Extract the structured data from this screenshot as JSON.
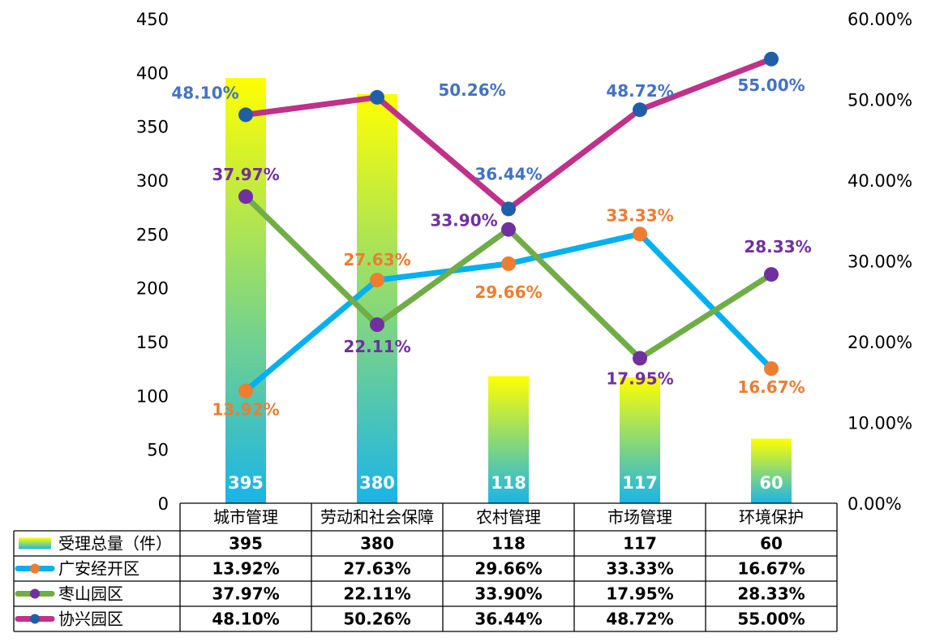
{
  "chart_data": {
    "type": "bar",
    "categories": [
      "城市管理",
      "劳动和社会保障",
      "农村管理",
      "市场管理",
      "环境保护"
    ],
    "bar_series": {
      "name": "受理总量（件）",
      "values": [
        395,
        380,
        118,
        117,
        60
      ],
      "color_top": "#ffff00",
      "color_bottom": "#1ab4e8"
    },
    "line_series": [
      {
        "name": "广安经开区",
        "values": [
          13.92,
          27.63,
          29.66,
          33.33,
          16.67
        ],
        "labels": [
          "13.92%",
          "27.63%",
          "29.66%",
          "33.33%",
          "16.67%"
        ],
        "line_color": "#00b0f0",
        "marker_color": "#ed7d31",
        "label_color": "#ed7d31"
      },
      {
        "name": "枣山园区",
        "values": [
          37.97,
          22.11,
          33.9,
          17.95,
          28.33
        ],
        "labels": [
          "37.97%",
          "22.11%",
          "33.90%",
          "17.95%",
          "28.33%"
        ],
        "line_color": "#70ad47",
        "marker_color": "#7030a0",
        "label_color": "#7030a0"
      },
      {
        "name": "协兴园区",
        "values": [
          48.1,
          50.26,
          36.44,
          48.72,
          55.0
        ],
        "labels": [
          "48.10%",
          "50.26%",
          "36.44%",
          "48.72%",
          "55.00%"
        ],
        "line_color": "#c0318a",
        "marker_color": "#1f5fa8",
        "label_color": "#4472c4"
      }
    ],
    "y_left": {
      "min": 0,
      "max": 450,
      "step": 50,
      "ticks": [
        "0",
        "50",
        "100",
        "150",
        "200",
        "250",
        "300",
        "350",
        "400",
        "450"
      ]
    },
    "y_right": {
      "min": 0,
      "max": 60,
      "step": 10,
      "ticks": [
        "0.00%",
        "10.00%",
        "20.00%",
        "30.00%",
        "40.00%",
        "50.00%",
        "60.00%"
      ]
    },
    "data_table": {
      "rows": [
        {
          "name": "受理总量（件）",
          "cells": [
            "395",
            "380",
            "118",
            "117",
            "60"
          ]
        },
        {
          "name": "广安经开区",
          "cells": [
            "13.92%",
            "27.63%",
            "29.66%",
            "33.33%",
            "16.67%"
          ]
        },
        {
          "name": "枣山园区",
          "cells": [
            "37.97%",
            "22.11%",
            "33.90%",
            "17.95%",
            "28.33%"
          ]
        },
        {
          "name": "协兴园区",
          "cells": [
            "48.10%",
            "50.26%",
            "36.44%",
            "48.72%",
            "55.00%"
          ]
        }
      ]
    }
  }
}
